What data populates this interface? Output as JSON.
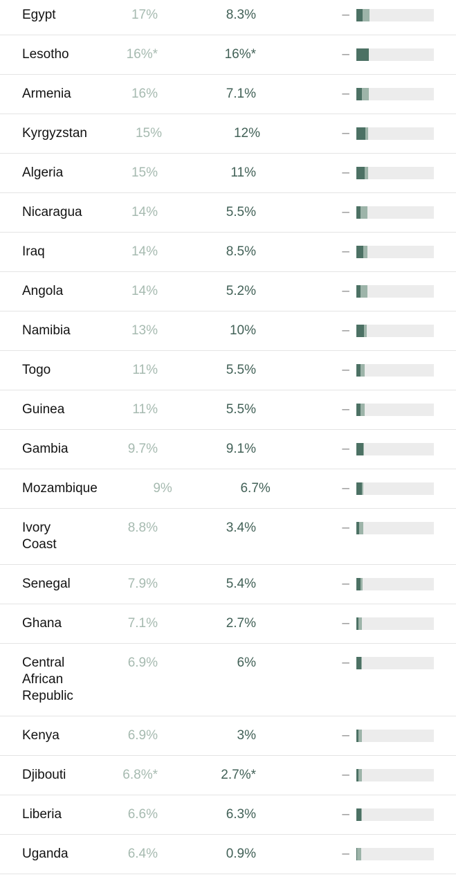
{
  "colors": {
    "country_text": "#121212",
    "value1_text": "#a6bab0",
    "value2_text": "#426157",
    "dash_text": "#8f8f8f",
    "bar_dark_green": "#4c7164",
    "bar_light_green": "#9db4a9",
    "bar_track_gray": "#ececec",
    "row_divider": "#e4e4e4"
  },
  "table": {
    "dash_glyph": "–",
    "rows": [
      {
        "country": "Egypt",
        "value1": "17%",
        "value2": "8.3%",
        "num1": 17,
        "num2": 8.3
      },
      {
        "country": "Lesotho",
        "value1": "16%*",
        "value2": "16%*",
        "num1": 16,
        "num2": 16
      },
      {
        "country": "Armenia",
        "value1": "16%",
        "value2": "7.1%",
        "num1": 16,
        "num2": 7.1
      },
      {
        "country": "Kyrgyzstan",
        "value1": "15%",
        "value2": "12%",
        "num1": 15,
        "num2": 12
      },
      {
        "country": "Algeria",
        "value1": "15%",
        "value2": "11%",
        "num1": 15,
        "num2": 11
      },
      {
        "country": "Nicaragua",
        "value1": "14%",
        "value2": "5.5%",
        "num1": 14,
        "num2": 5.5
      },
      {
        "country": "Iraq",
        "value1": "14%",
        "value2": "8.5%",
        "num1": 14,
        "num2": 8.5
      },
      {
        "country": "Angola",
        "value1": "14%",
        "value2": "5.2%",
        "num1": 14,
        "num2": 5.2
      },
      {
        "country": "Namibia",
        "value1": "13%",
        "value2": "10%",
        "num1": 13,
        "num2": 10
      },
      {
        "country": "Togo",
        "value1": "11%",
        "value2": "5.5%",
        "num1": 11,
        "num2": 5.5
      },
      {
        "country": "Guinea",
        "value1": "11%",
        "value2": "5.5%",
        "num1": 11,
        "num2": 5.5
      },
      {
        "country": "Gambia",
        "value1": "9.7%",
        "value2": "9.1%",
        "num1": 9.7,
        "num2": 9.1
      },
      {
        "country": "Mozambique",
        "value1": "9%",
        "value2": "6.7%",
        "num1": 9,
        "num2": 6.7
      },
      {
        "country": "Ivory Coast",
        "value1": "8.8%",
        "value2": "3.4%",
        "num1": 8.8,
        "num2": 3.4
      },
      {
        "country": "Senegal",
        "value1": "7.9%",
        "value2": "5.4%",
        "num1": 7.9,
        "num2": 5.4
      },
      {
        "country": "Ghana",
        "value1": "7.1%",
        "value2": "2.7%",
        "num1": 7.1,
        "num2": 2.7
      },
      {
        "country": "Central African Republic",
        "value1": "6.9%",
        "value2": "6%",
        "num1": 6.9,
        "num2": 6
      },
      {
        "country": "Kenya",
        "value1": "6.9%",
        "value2": "3%",
        "num1": 6.9,
        "num2": 3
      },
      {
        "country": "Djibouti",
        "value1": "6.8%*",
        "value2": "2.7%*",
        "num1": 6.8,
        "num2": 2.7
      },
      {
        "country": "Liberia",
        "value1": "6.6%",
        "value2": "6.3%",
        "num1": 6.6,
        "num2": 6.3
      },
      {
        "country": "Uganda",
        "value1": "6.4%",
        "value2": "0.9%",
        "num1": 6.4,
        "num2": 0.9
      }
    ]
  },
  "chart_data": {
    "type": "bar",
    "orientation": "horizontal",
    "categories": [
      "Egypt",
      "Lesotho",
      "Armenia",
      "Kyrgyzstan",
      "Algeria",
      "Nicaragua",
      "Iraq",
      "Angola",
      "Namibia",
      "Togo",
      "Guinea",
      "Gambia",
      "Mozambique",
      "Ivory Coast",
      "Senegal",
      "Ghana",
      "Central African Republic",
      "Kenya",
      "Djibouti",
      "Liberia",
      "Uganda"
    ],
    "series": [
      {
        "name": "value_1_light_green",
        "values": [
          17,
          16,
          16,
          15,
          15,
          14,
          14,
          14,
          13,
          11,
          11,
          9.7,
          9,
          8.8,
          7.9,
          7.1,
          6.9,
          6.9,
          6.8,
          6.6,
          6.4
        ]
      },
      {
        "name": "value_2_dark_green",
        "values": [
          8.3,
          16,
          7.1,
          12,
          11,
          5.5,
          8.5,
          5.2,
          10,
          5.5,
          5.5,
          9.1,
          6.7,
          3.4,
          5.4,
          2.7,
          6,
          3,
          2.7,
          6.3,
          0.9
        ]
      }
    ],
    "value_labels_with_footnotes": [
      "16%* (Lesotho both columns)",
      "6.8%* / 2.7%* (Djibouti)"
    ],
    "bar_axis_range": [
      0,
      100
    ],
    "bar_style": "stacked: dark segment = value_2, light segment = value_1 minus value_2, on gray 0–100% track",
    "grid": false,
    "legend": false,
    "title": "",
    "xlabel": "",
    "ylabel": ""
  }
}
